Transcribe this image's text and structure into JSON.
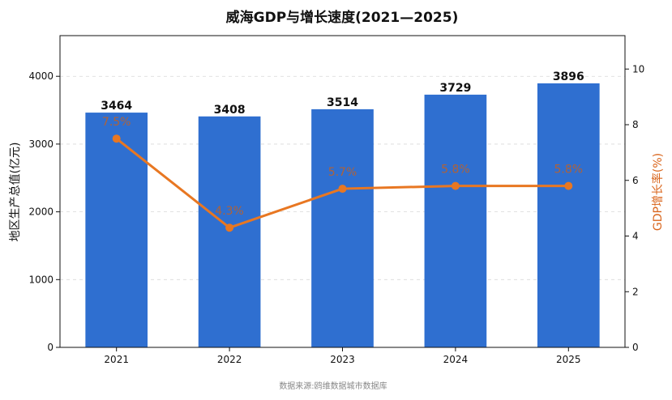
{
  "chart_data": {
    "type": "bar",
    "title": "威海GDP与增长速度(2021—2025)",
    "categories": [
      "2021",
      "2022",
      "2023",
      "2024",
      "2025"
    ],
    "series": [
      {
        "type": "bar",
        "axis": "left",
        "color": "#2f6fd0",
        "values": [
          3464,
          3408,
          3514,
          3729,
          3896
        ],
        "labels": [
          "3464",
          "3408",
          "3514",
          "3729",
          "3896"
        ]
      },
      {
        "type": "line",
        "axis": "right",
        "color": "#e87722",
        "values": [
          7.5,
          4.3,
          5.7,
          5.8,
          5.8
        ],
        "labels": [
          "7.5%",
          "4.3%",
          "5.7%",
          "5.8%",
          "5.8%"
        ]
      }
    ],
    "ylabel": "地区生产总值(亿元)",
    "y2label": "GDP增长率(%)",
    "ylim": [
      0,
      4600
    ],
    "y2lim": [
      0,
      11.2
    ],
    "yticks": [
      "0",
      "1000",
      "2000",
      "3000",
      "4000"
    ],
    "y2ticks": [
      "0",
      "2",
      "4",
      "6",
      "8",
      "10"
    ],
    "grid": true,
    "legend": "none",
    "source": "数据来源:鸥维数据城市数据库"
  }
}
